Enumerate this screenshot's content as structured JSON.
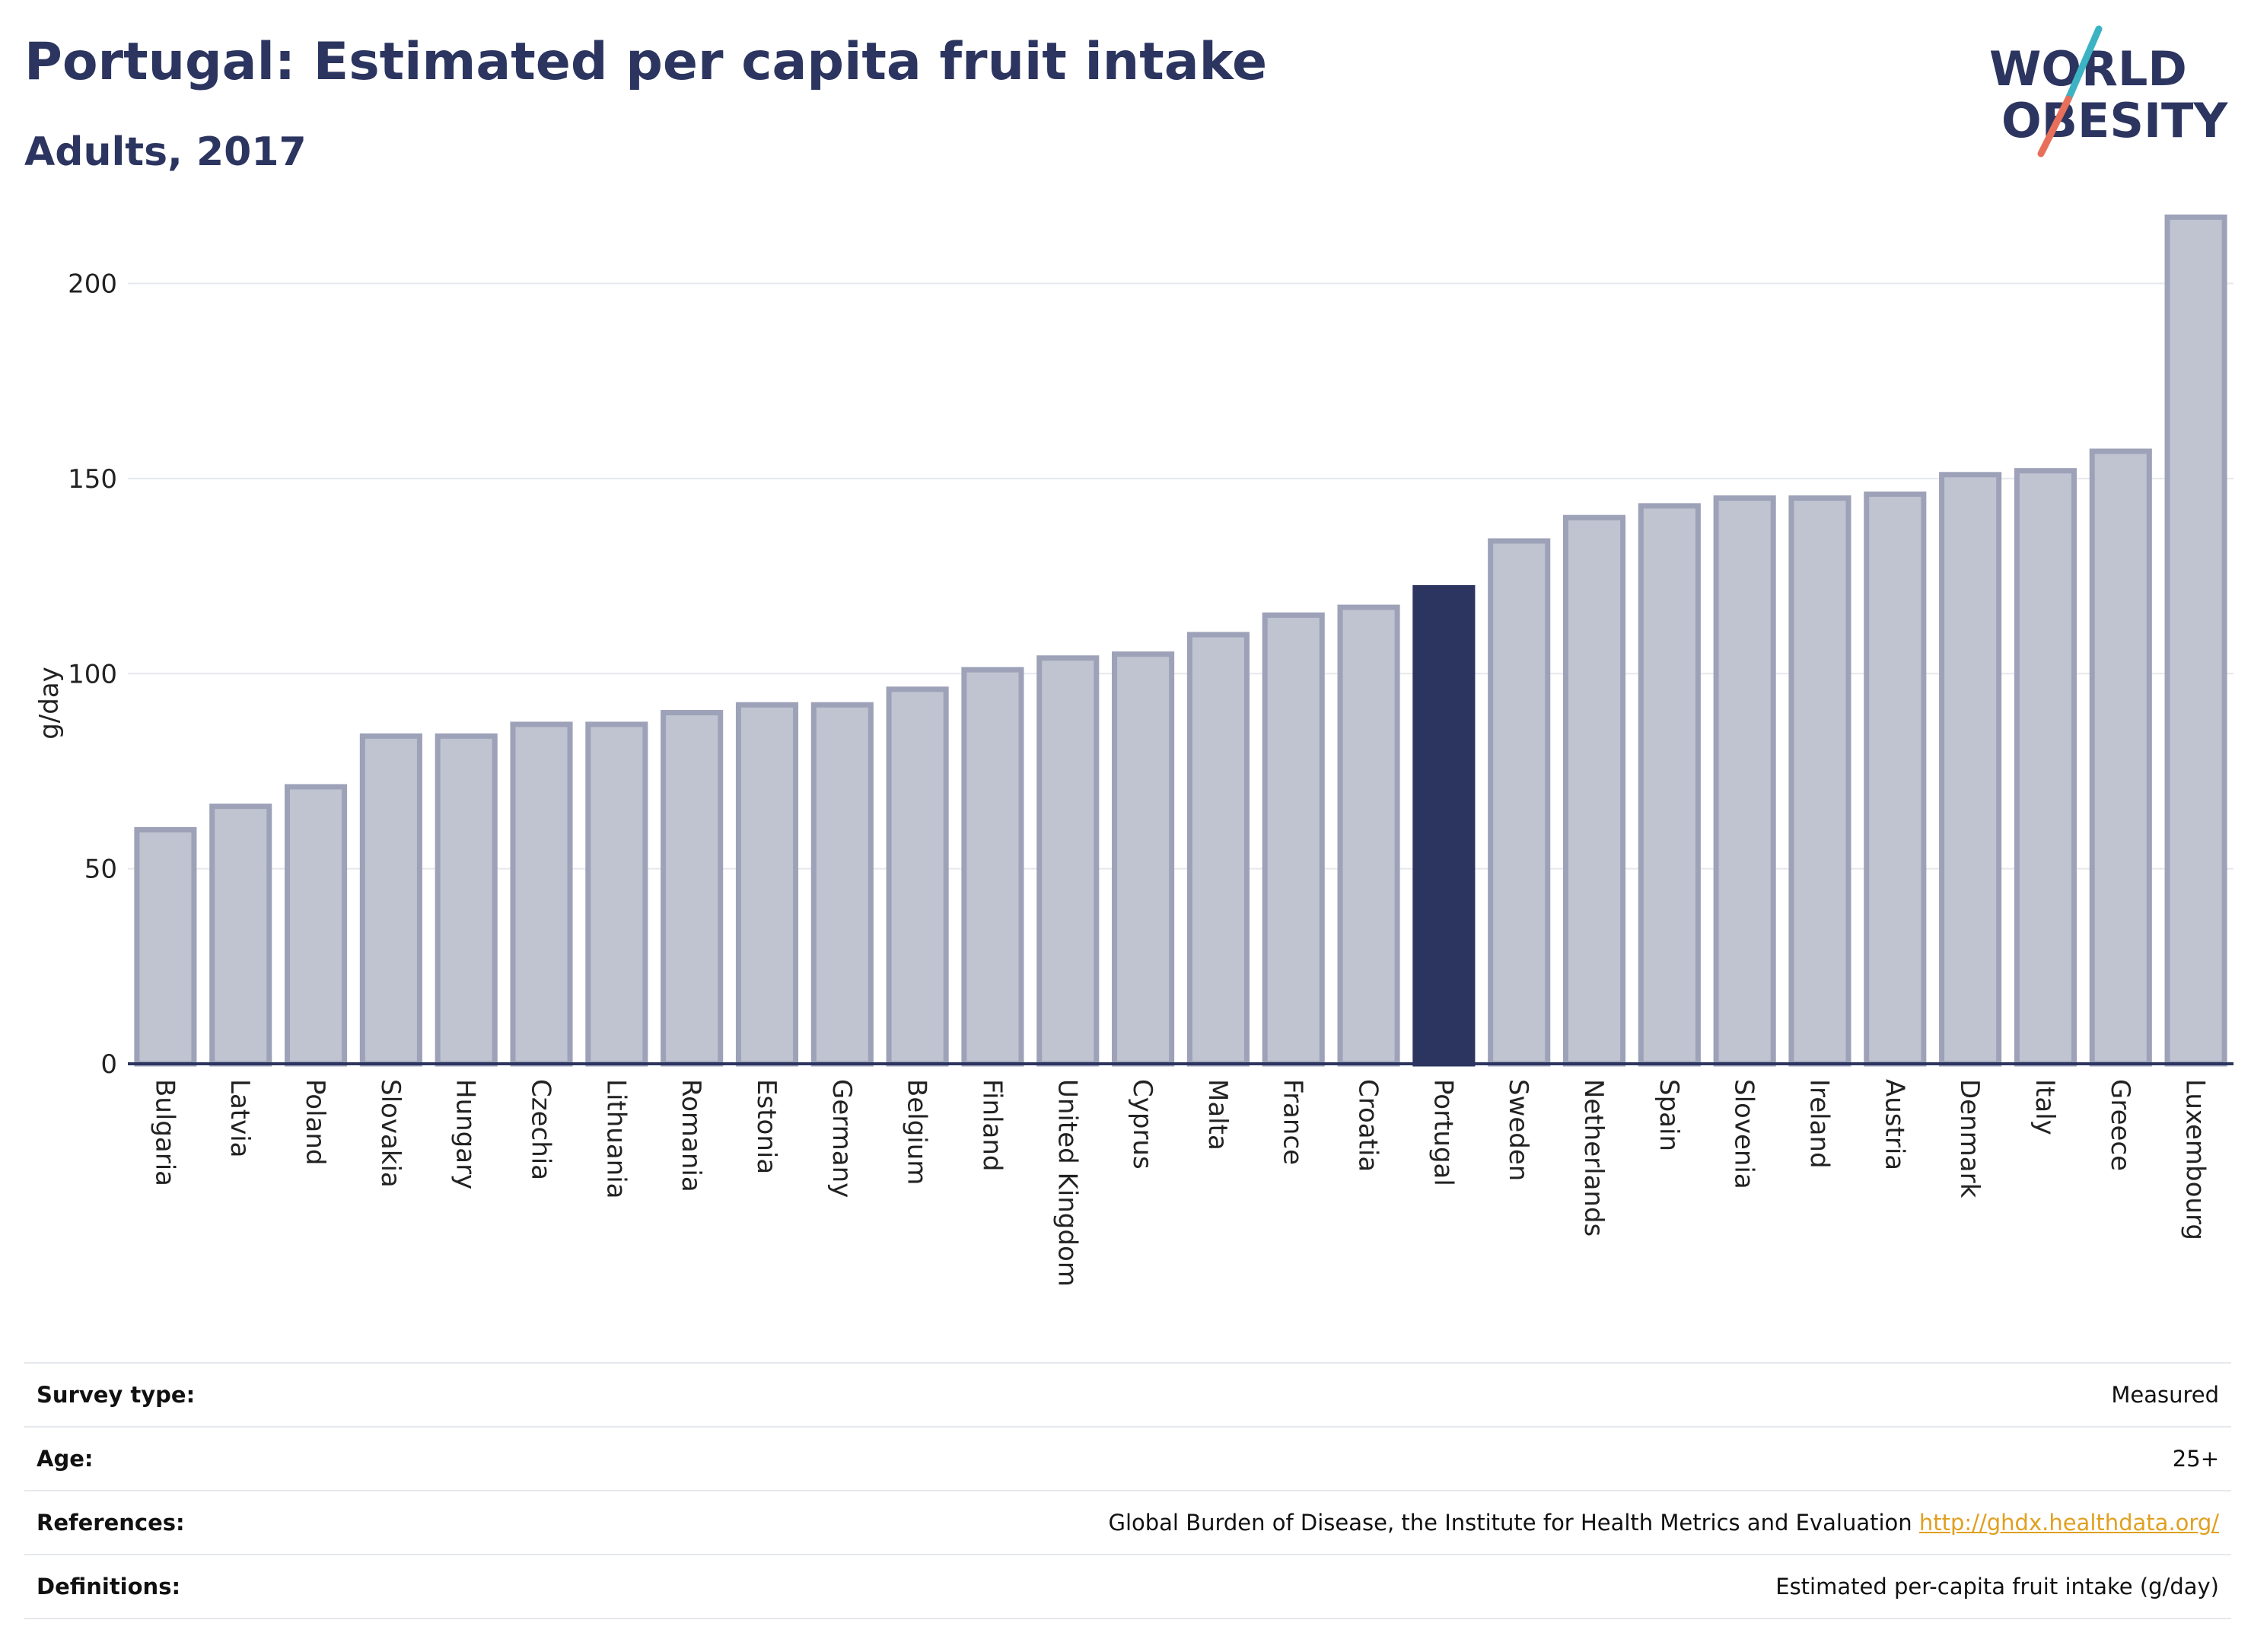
{
  "header": {
    "title": "Portugal: Estimated per capita fruit intake",
    "subtitle": "Adults, 2017"
  },
  "logo": {
    "line1": "WORLD",
    "line2": "OBESITY",
    "colors": {
      "text": "#2c3560",
      "slash_top": "#3bb3c3",
      "slash_bottom": "#e8705a"
    }
  },
  "chart_data": {
    "type": "bar",
    "ylabel": "g/day",
    "ylim": [
      0,
      220
    ],
    "yticks": [
      0,
      50,
      100,
      150,
      200
    ],
    "grid": true,
    "highlight": "Portugal",
    "colors": {
      "bar": "#c0c3d0",
      "bar_border": "#9da2b8",
      "highlight": "#2c3560",
      "grid": "#e6e8ee",
      "axis": "#2c3560"
    },
    "categories": [
      "Bulgaria",
      "Latvia",
      "Poland",
      "Slovakia",
      "Hungary",
      "Czechia",
      "Lithuania",
      "Romania",
      "Estonia",
      "Germany",
      "Belgium",
      "Finland",
      "United Kingdom",
      "Cyprus",
      "Malta",
      "France",
      "Croatia",
      "Portugal",
      "Sweden",
      "Netherlands",
      "Spain",
      "Slovenia",
      "Ireland",
      "Austria",
      "Denmark",
      "Italy",
      "Greece",
      "Luxembourg"
    ],
    "values": [
      60,
      66,
      71,
      84,
      84,
      87,
      87,
      90,
      92,
      92,
      96,
      101,
      104,
      105,
      110,
      115,
      117,
      122,
      134,
      140,
      143,
      145,
      145,
      146,
      151,
      152,
      157,
      217
    ]
  },
  "info": {
    "rows": [
      {
        "key": "Survey type:",
        "value": "Measured"
      },
      {
        "key": "Age:",
        "value": "25+"
      },
      {
        "key": "References:",
        "value": "Global Burden of Disease, the Institute for Health Metrics and Evaluation",
        "link": "http://ghdx.healthdata.org/"
      },
      {
        "key": "Definitions:",
        "value": "Estimated per-capita fruit intake (g/day)"
      }
    ]
  }
}
